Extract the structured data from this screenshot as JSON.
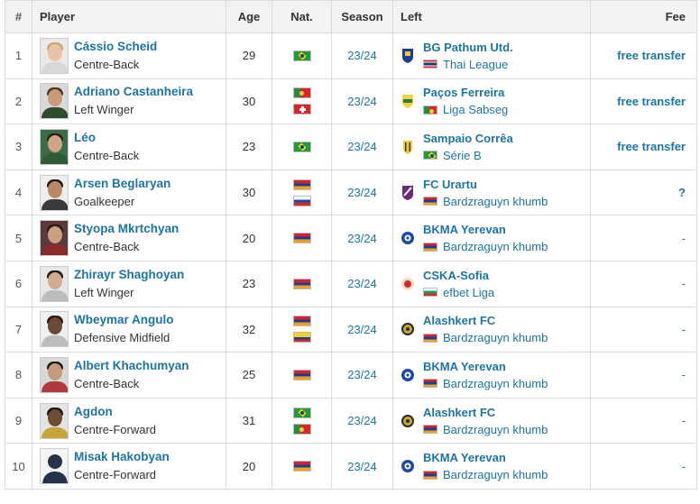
{
  "headers": {
    "num": "#",
    "player": "Player",
    "age": "Age",
    "nat": "Nat.",
    "season": "Season",
    "left": "Left",
    "fee": "Fee"
  },
  "rows": [
    {
      "num": "1",
      "name": "Cássio Scheid",
      "position": "Centre-Back",
      "age": "29",
      "nat": [
        "brazil-flag"
      ],
      "season": "23/24",
      "club": "BG Pathum Utd.",
      "league": "Thai League",
      "league_flag": "thailand-flag",
      "fee": "free transfer"
    },
    {
      "num": "2",
      "name": "Adriano Castanheira",
      "position": "Left Winger",
      "age": "30",
      "nat": [
        "portugal-flag",
        "switzerland-flag"
      ],
      "season": "23/24",
      "club": "Paços Ferreira",
      "league": "Liga Sabseg",
      "league_flag": "portugal-flag",
      "fee": "free transfer"
    },
    {
      "num": "3",
      "name": "Léo",
      "position": "Centre-Back",
      "age": "23",
      "nat": [
        "brazil-flag"
      ],
      "season": "23/24",
      "club": "Sampaio Corrêa",
      "league": "Série B",
      "league_flag": "brazil-flag",
      "fee": "free transfer"
    },
    {
      "num": "4",
      "name": "Arsen Beglaryan",
      "position": "Goalkeeper",
      "age": "30",
      "nat": [
        "armenia-flag",
        "russia-flag"
      ],
      "season": "23/24",
      "club": "FC Urartu",
      "league": "Bardzraguyn khumb",
      "league_flag": "armenia-flag",
      "fee": "?"
    },
    {
      "num": "5",
      "name": "Styopa Mkrtchyan",
      "position": "Centre-Back",
      "age": "20",
      "nat": [
        "armenia-flag"
      ],
      "season": "23/24",
      "club": "BKMA Yerevan",
      "league": "Bardzraguyn khumb",
      "league_flag": "armenia-flag",
      "fee": "-"
    },
    {
      "num": "6",
      "name": "Zhirayr Shaghoyan",
      "position": "Left Winger",
      "age": "23",
      "nat": [
        "armenia-flag"
      ],
      "season": "23/24",
      "club": "CSKA-Sofia",
      "league": "efbet Liga",
      "league_flag": "bulgaria-flag",
      "fee": "-"
    },
    {
      "num": "7",
      "name": "Wbeymar Angulo",
      "position": "Defensive Midfield",
      "age": "32",
      "nat": [
        "armenia-flag",
        "colombia-flag"
      ],
      "season": "23/24",
      "club": "Alashkert FC",
      "league": "Bardzraguyn khumb",
      "league_flag": "armenia-flag",
      "fee": "-"
    },
    {
      "num": "8",
      "name": "Albert Khachumyan",
      "position": "Centre-Back",
      "age": "25",
      "nat": [
        "armenia-flag"
      ],
      "season": "23/24",
      "club": "BKMA Yerevan",
      "league": "Bardzraguyn khumb",
      "league_flag": "armenia-flag",
      "fee": "-"
    },
    {
      "num": "9",
      "name": "Agdon",
      "position": "Centre-Forward",
      "age": "31",
      "nat": [
        "brazil-flag",
        "portugal-flag"
      ],
      "season": "23/24",
      "club": "Alashkert FC",
      "league": "Bardzraguyn khumb",
      "league_flag": "armenia-flag",
      "fee": "-"
    },
    {
      "num": "10",
      "name": "Misak Hakobyan",
      "position": "Centre-Forward",
      "age": "20",
      "nat": [
        "armenia-flag"
      ],
      "season": "23/24",
      "club": "BKMA Yerevan",
      "league": "Bardzraguyn khumb",
      "league_flag": "armenia-flag",
      "fee": "-"
    }
  ],
  "colors": {
    "link": "#1d75a3",
    "header_bg": "#f2f2f2",
    "border": "#dcdcdc"
  }
}
